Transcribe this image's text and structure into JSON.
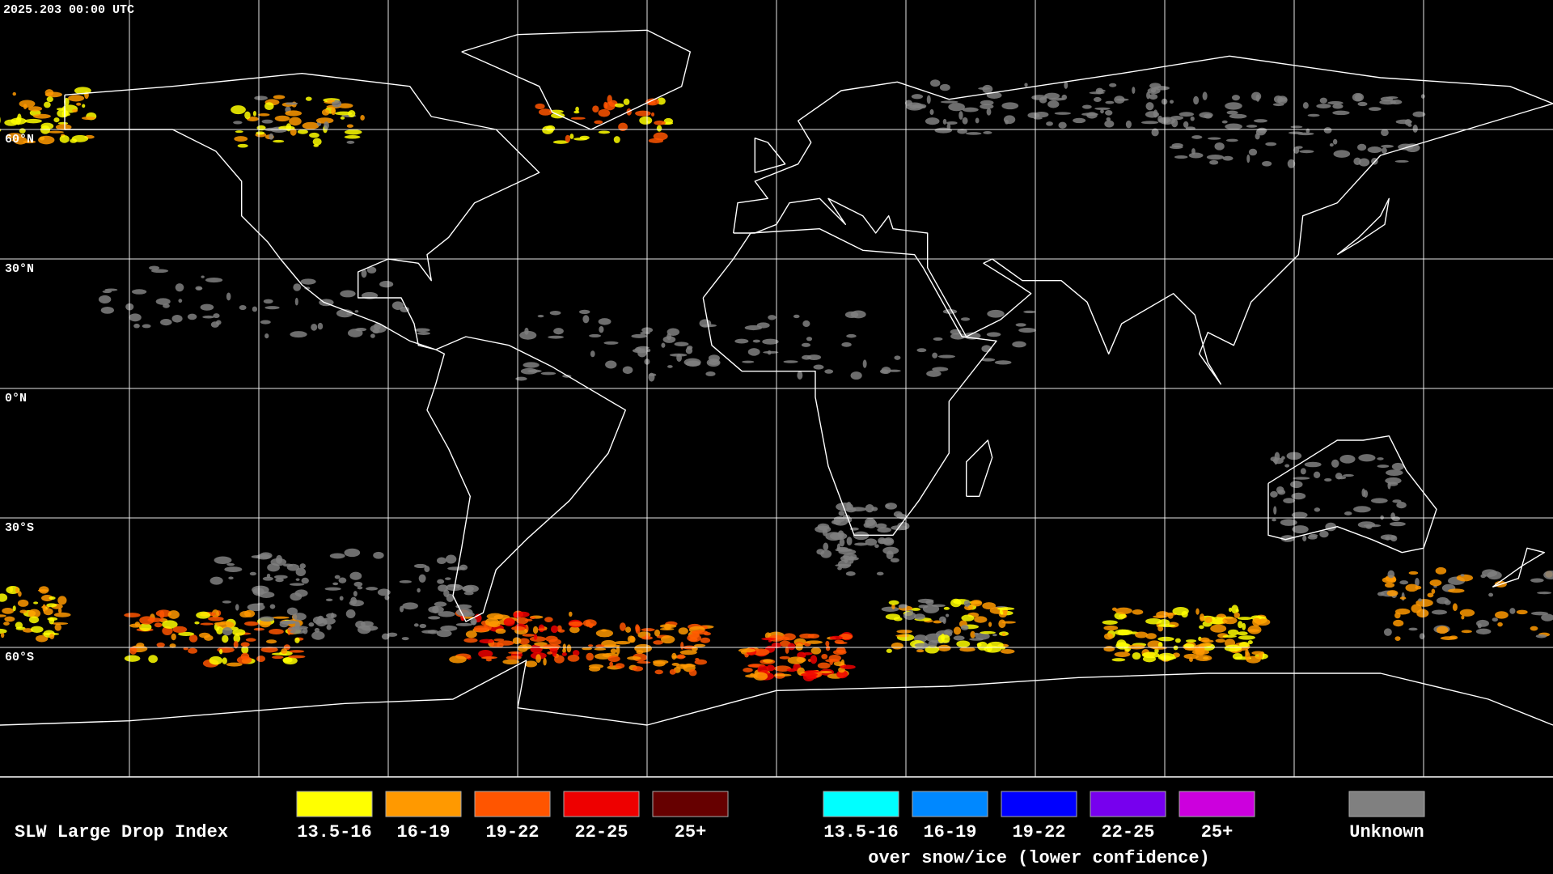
{
  "header": {
    "timestamp": "2025.203 00:00 UTC"
  },
  "map": {
    "latitude_labels": [
      "60°N",
      "30°N",
      "0°N",
      "30°S",
      "60°S"
    ]
  },
  "legend": {
    "title": "SLW Large Drop Index",
    "groups": [
      {
        "items": [
          {
            "label": "13.5-16",
            "color": "#ffff00"
          },
          {
            "label": "16-19",
            "color": "#ff9900"
          },
          {
            "label": "19-22",
            "color": "#ff5500"
          },
          {
            "label": "22-25",
            "color": "#ee0000"
          },
          {
            "label": "25+",
            "color": "#660000"
          }
        ]
      },
      {
        "items": [
          {
            "label": "13.5-16",
            "color": "#00ffff"
          },
          {
            "label": "16-19",
            "color": "#0088ff"
          },
          {
            "label": "19-22",
            "color": "#0000ff"
          },
          {
            "label": "22-25",
            "color": "#7700ee"
          },
          {
            "label": "25+",
            "color": "#cc00dd"
          }
        ],
        "caption": "over snow/ice (lower confidence)"
      },
      {
        "items": [
          {
            "label": "Unknown",
            "color": "#808080"
          }
        ]
      }
    ]
  }
}
